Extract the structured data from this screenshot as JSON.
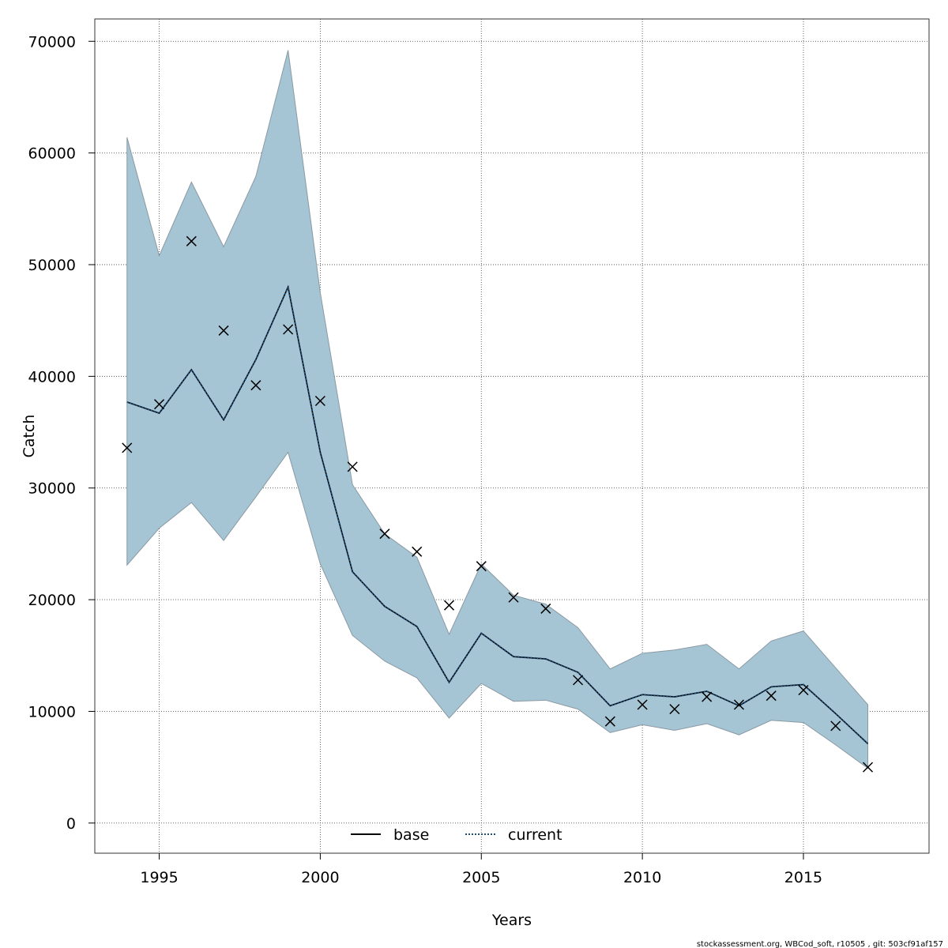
{
  "chart_data": {
    "type": "line",
    "xlabel": "Years",
    "ylabel": "Catch",
    "xlim": [
      1993.0,
      2018.9
    ],
    "ylim": [
      -2700,
      72000
    ],
    "x_ticks": [
      1995,
      2000,
      2005,
      2010,
      2015
    ],
    "y_ticks": [
      0,
      10000,
      20000,
      30000,
      40000,
      50000,
      60000,
      70000
    ],
    "grid": true,
    "legend_placement": "bottom-center",
    "colors": {
      "band_fill": "#a5c4d4",
      "band_edge": "#8a9aa3",
      "line": "#000000",
      "current_line": "#1f4e79",
      "grid": "#555555"
    },
    "x": [
      1994,
      1995,
      1996,
      1997,
      1998,
      1999,
      2000,
      2001,
      2002,
      2003,
      2004,
      2005,
      2006,
      2007,
      2008,
      2009,
      2010,
      2011,
      2012,
      2013,
      2014,
      2015,
      2016,
      2017
    ],
    "series": [
      {
        "name": "base",
        "style": "solid",
        "values": [
          37700,
          36700,
          40600,
          36100,
          41500,
          48000,
          33200,
          22500,
          19400,
          17600,
          12600,
          17000,
          14900,
          14700,
          13500,
          10500,
          11500,
          11300,
          11800,
          10500,
          12200,
          12400,
          9800,
          7100
        ]
      },
      {
        "name": "current",
        "style": "dotted",
        "values": [
          37700,
          36700,
          40600,
          36100,
          41500,
          48000,
          33200,
          22500,
          19400,
          17600,
          12600,
          17000,
          14900,
          14700,
          13500,
          10500,
          11500,
          11300,
          11800,
          10500,
          12200,
          12400,
          9800,
          7100
        ]
      }
    ],
    "confidence_band": {
      "upper": [
        61400,
        50800,
        57400,
        51600,
        57900,
        69200,
        47500,
        30300,
        25900,
        23800,
        16900,
        23200,
        20400,
        19600,
        17500,
        13800,
        15200,
        15500,
        16000,
        13800,
        16300,
        17200,
        13900,
        10600
      ],
      "lower": [
        23100,
        26400,
        28700,
        25300,
        29200,
        33200,
        23200,
        16800,
        14500,
        13000,
        9400,
        12500,
        10900,
        11000,
        10200,
        8100,
        8800,
        8300,
        8900,
        7900,
        9200,
        9000,
        7000,
        4900
      ]
    },
    "observations": [
      33600,
      37500,
      52100,
      44100,
      39200,
      44200,
      37800,
      31900,
      25900,
      24300,
      19500,
      23000,
      20200,
      19200,
      12800,
      9100,
      10600,
      10200,
      11300,
      10600,
      11400,
      11900,
      8700,
      5000
    ]
  },
  "footer": {
    "text": "stockassessment.org, WBCod_soft, r10505 , git: 503cf91af157"
  }
}
